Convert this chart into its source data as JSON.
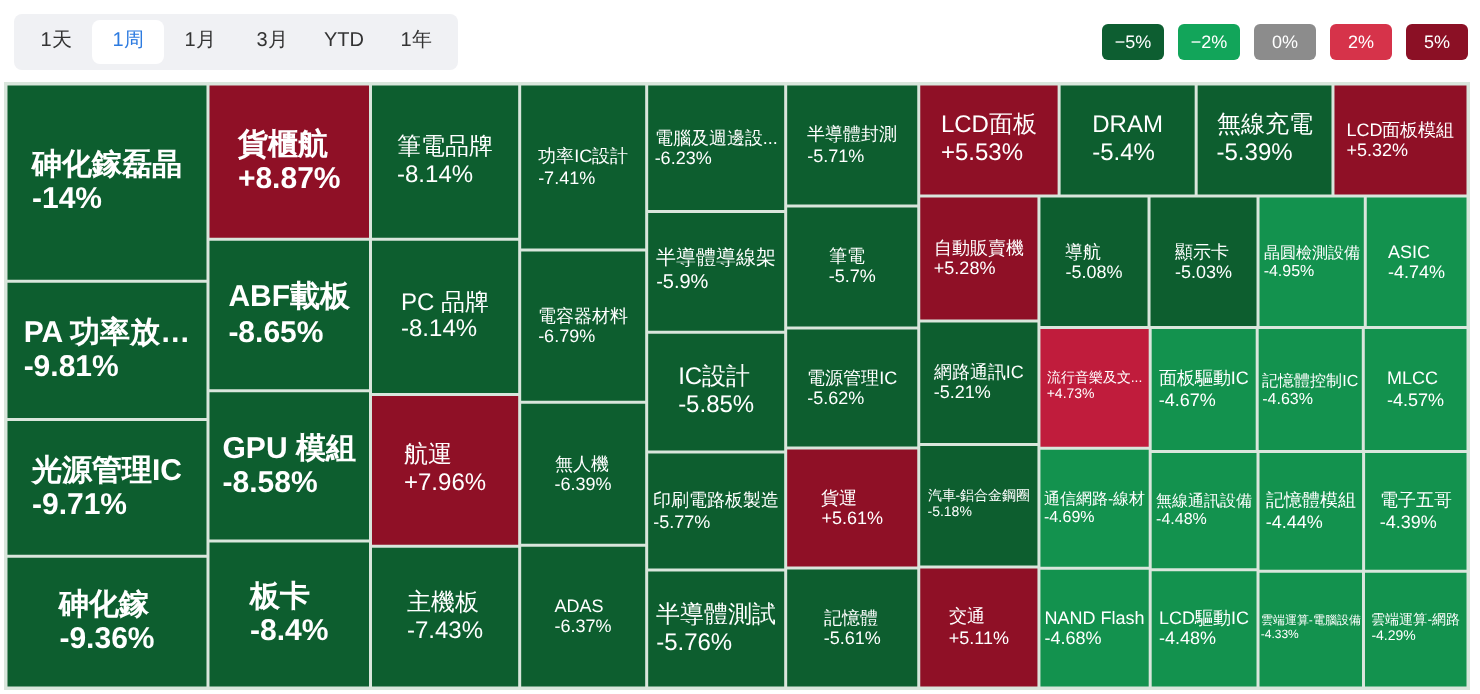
{
  "chart_data": {
    "type": "other",
    "categories": [
      "砷化鎵磊晶",
      "PA 功率放…",
      "光源管理IC",
      "砷化鎵",
      "貨櫃航",
      "ABF載板",
      "GPU 模組",
      "板卡",
      "筆電品牌",
      "PC 品牌",
      "航運",
      "主機板",
      "功率IC設計",
      "電容器材料",
      "無人機",
      "ADAS",
      "電腦及週邊設...",
      "半導體導線架",
      "IC設計",
      "印刷電路板製造",
      "半導體測試",
      "半導體封測",
      "筆電",
      "電源管理IC",
      "貨運",
      "記憶體",
      "LCD面板",
      "DRAM",
      "無線充電",
      "LCD面板模組",
      "自動販賣機",
      "網路通訊IC",
      "汽車-鋁合金鋼圈",
      "交通",
      "導航",
      "顯示卡",
      "晶圓檢測設備",
      "ASIC",
      "流行音樂及文...",
      "通信網路-線材",
      "NAND Flash",
      "面板驅動IC",
      "記憶體控制IC",
      "MLCC",
      "無線通訊設備",
      "LCD驅動IC",
      "記憶體模組",
      "電子五哥",
      "雲端運算-電腦設備",
      "雲端運算-網路"
    ],
    "values": [
      -14,
      -9.81,
      -9.71,
      -9.36,
      8.87,
      -8.65,
      -8.58,
      -8.4,
      -8.14,
      -8.14,
      7.96,
      -7.43,
      -7.41,
      -6.79,
      -6.39,
      -6.37,
      -6.23,
      -5.9,
      -5.85,
      -5.77,
      -5.76,
      -5.71,
      -5.7,
      -5.62,
      5.61,
      -5.61,
      5.53,
      -5.4,
      -5.39,
      5.32,
      5.28,
      -5.21,
      -5.18,
      5.11,
      -5.08,
      -5.03,
      -4.95,
      -4.74,
      4.73,
      -4.69,
      -4.68,
      -4.67,
      -4.63,
      -4.57,
      -4.48,
      -4.48,
      -4.44,
      -4.39,
      -4.33,
      -4.29
    ],
    "value_labels": [
      "-14%",
      "-9.81%",
      "-9.71%",
      "-9.36%",
      "+8.87%",
      "-8.65%",
      "-8.58%",
      "-8.4%",
      "-8.14%",
      "-8.14%",
      "+7.96%",
      "-7.43%",
      "-7.41%",
      "-6.79%",
      "-6.39%",
      "-6.37%",
      "-6.23%",
      "-5.9%",
      "-5.85%",
      "-5.77%",
      "-5.76%",
      "-5.71%",
      "-5.7%",
      "-5.62%",
      "+5.61%",
      "-5.61%",
      "+5.53%",
      "-5.4%",
      "-5.39%",
      "+5.32%",
      "+5.28%",
      "-5.21%",
      "-5.18%",
      "+5.11%",
      "-5.08%",
      "-5.03%",
      "-4.95%",
      "-4.74%",
      "+4.73%",
      "-4.69%",
      "-4.68%",
      "-4.67%",
      "-4.63%",
      "-4.57%",
      "-4.48%",
      "-4.48%",
      "-4.44%",
      "-4.39%",
      "-4.33%",
      "-4.29%"
    ],
    "colors": [
      "#0d5e2f",
      "#0d5e2f",
      "#0d5e2f",
      "#0d5e2f",
      "#8f1026",
      "#0d5e2f",
      "#0d5e2f",
      "#0d5e2f",
      "#0d5e2f",
      "#0d5e2f",
      "#8f1026",
      "#0d5e2f",
      "#0d5e2f",
      "#0d5e2f",
      "#0d5e2f",
      "#0d5e2f",
      "#0d5e2f",
      "#0d5e2f",
      "#0d5e2f",
      "#0d5e2f",
      "#0d5e2f",
      "#0d5e2f",
      "#0d5e2f",
      "#0d5e2f",
      "#8f1026",
      "#0d5e2f",
      "#8f1026",
      "#0d5e2f",
      "#0d5e2f",
      "#8f1026",
      "#8f1026",
      "#0d5e2f",
      "#0d5e2f",
      "#8f1026",
      "#0d5e2f",
      "#0d5e2f",
      "#13924e",
      "#13924e",
      "#c01c3c",
      "#13924e",
      "#13924e",
      "#13924e",
      "#13924e",
      "#13924e",
      "#13924e",
      "#13924e",
      "#13924e",
      "#13924e",
      "#13924e",
      "#13924e"
    ],
    "annotations": [
      "1天",
      "1周",
      "1月",
      "3月",
      "YTD",
      "1年",
      "−5%",
      "−2%",
      "0%",
      "2%",
      "5%"
    ]
  }
}
